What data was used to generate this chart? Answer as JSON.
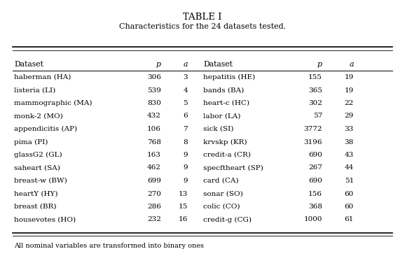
{
  "title_line1": "TABLE I",
  "title_line2": "CʟARACTERISTICS FOR THE 24 DATASETS TESTED.",
  "title_line2_display": "Characteristics for the 24 datasets tested.",
  "col_headers_left": [
    "Dataset",
    "p",
    "a"
  ],
  "col_headers_right": [
    "Dataset",
    "p",
    "a"
  ],
  "left_data": [
    [
      "haberman (HA)",
      "306",
      "3"
    ],
    [
      "listeria (LI)",
      "539",
      "4"
    ],
    [
      "mammographic (MA)",
      "830",
      "5"
    ],
    [
      "monk-2 (MO)",
      "432",
      "6"
    ],
    [
      "appendicitis (AP)",
      "106",
      "7"
    ],
    [
      "pima (PI)",
      "768",
      "8"
    ],
    [
      "glassG2 (GL)",
      "163",
      "9"
    ],
    [
      "saheart (SA)",
      "462",
      "9"
    ],
    [
      "breast-w (BW)",
      "699",
      "9"
    ],
    [
      "heartY (HY)",
      "270",
      "13"
    ],
    [
      "breast (BR)",
      "286",
      "15"
    ],
    [
      "housevotes (HO)",
      "232",
      "16"
    ]
  ],
  "right_data": [
    [
      "hepatitis (HE)",
      "155",
      "19"
    ],
    [
      "bands (BA)",
      "365",
      "19"
    ],
    [
      "heart-c (HC)",
      "302",
      "22"
    ],
    [
      "labor (LA)",
      "57",
      "29"
    ],
    [
      "sick (SI)",
      "3772",
      "33"
    ],
    [
      "krvskp (KR)",
      "3196",
      "38"
    ],
    [
      "credit-a (CR)",
      "690",
      "43"
    ],
    [
      "specftheart (SP)",
      "267",
      "44"
    ],
    [
      "card (CA)",
      "690",
      "51"
    ],
    [
      "sonar (SO)",
      "156",
      "60"
    ],
    [
      "colic (CO)",
      "368",
      "60"
    ],
    [
      "credit-g (CG)",
      "1000",
      "61"
    ]
  ],
  "footnote": "All nominal variables are transformed into binary ones",
  "bg_color": "#ffffff",
  "text_color": "#000000",
  "fs_title": 9.5,
  "fs_subtitle": 8.0,
  "fs_header": 7.8,
  "fs_data": 7.5,
  "fs_footnote": 7.0
}
